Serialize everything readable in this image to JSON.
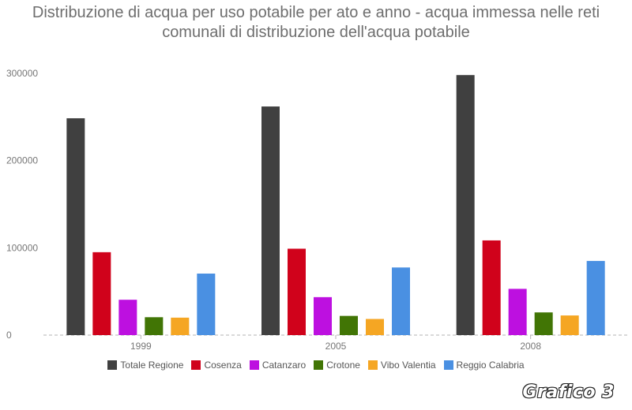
{
  "chart_data": {
    "type": "bar",
    "title_lines": [
      "Distribuzione di acqua per uso potabile per ato e anno - acqua immessa nelle reti",
      "comunali di distribuzione dell'acqua potabile"
    ],
    "categories": [
      "1999",
      "2005",
      "2008"
    ],
    "series": [
      {
        "name": "Totale Regione",
        "color": "#404040",
        "values": [
          248500,
          262000,
          298000
        ]
      },
      {
        "name": "Cosenza",
        "color": "#d0021b",
        "values": [
          95000,
          99000,
          108500
        ]
      },
      {
        "name": "Catanzaro",
        "color": "#bd10e0",
        "values": [
          40500,
          43500,
          53000
        ]
      },
      {
        "name": "Crotone",
        "color": "#417505",
        "values": [
          20500,
          22000,
          26000
        ]
      },
      {
        "name": "Vibo Valentia",
        "color": "#f5a623",
        "values": [
          20000,
          18500,
          22500
        ]
      },
      {
        "name": "Reggio Calabria",
        "color": "#4a90e2",
        "values": [
          70500,
          77500,
          85000
        ]
      }
    ],
    "yticks": [
      "0",
      "100000",
      "200000",
      "300000"
    ],
    "ylim": [
      0,
      300000
    ],
    "grid": false,
    "legend": "bottom"
  },
  "watermark": "Grafico 3"
}
